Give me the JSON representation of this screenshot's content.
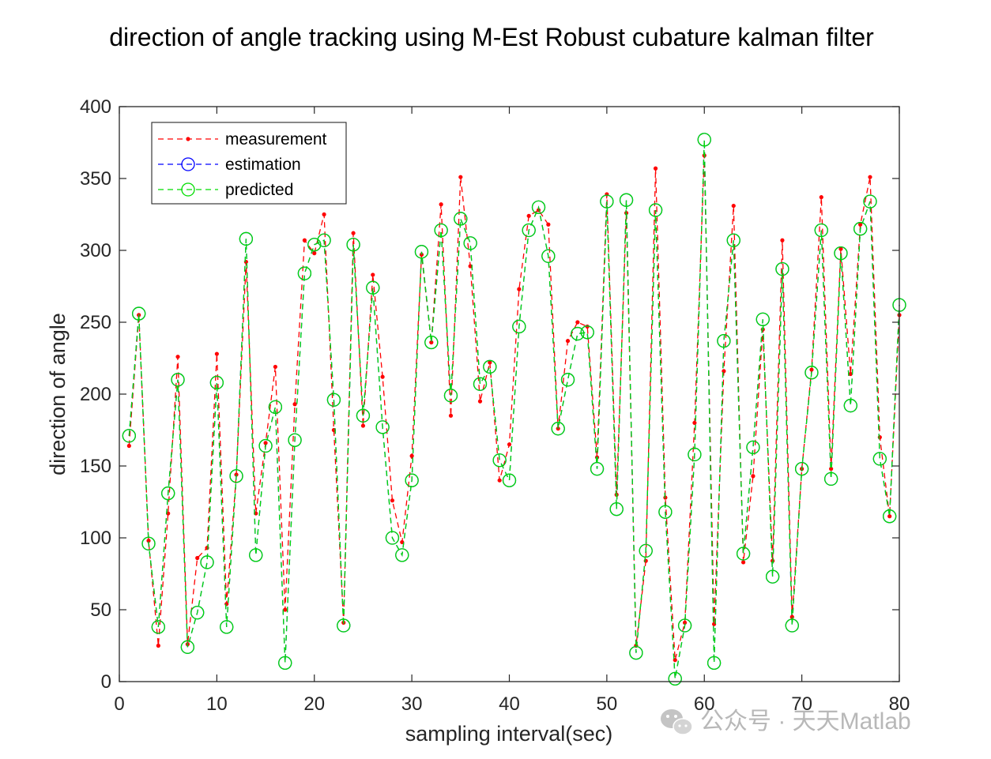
{
  "chart_data": {
    "type": "line",
    "title": "direction of angle tracking using M-Est Robust cubature kalman filter",
    "xlabel": "sampling interval(sec)",
    "ylabel": "direction of angle",
    "xlim": [
      0,
      80
    ],
    "ylim": [
      0,
      400
    ],
    "xticks": [
      "0",
      "10",
      "20",
      "30",
      "40",
      "50",
      "60",
      "70",
      "80"
    ],
    "yticks": [
      "0",
      "50",
      "100",
      "150",
      "200",
      "250",
      "300",
      "350",
      "400"
    ],
    "legend_position": "top-left",
    "grid": false,
    "x": [
      1,
      2,
      3,
      4,
      5,
      6,
      7,
      8,
      9,
      10,
      11,
      12,
      13,
      14,
      15,
      16,
      17,
      18,
      19,
      20,
      21,
      22,
      23,
      24,
      25,
      26,
      27,
      28,
      29,
      30,
      31,
      32,
      33,
      34,
      35,
      36,
      37,
      38,
      39,
      40,
      41,
      42,
      43,
      44,
      45,
      46,
      47,
      48,
      49,
      50,
      51,
      52,
      53,
      54,
      55,
      56,
      57,
      58,
      59,
      60,
      61,
      62,
      63,
      64,
      65,
      66,
      67,
      68,
      69,
      70,
      71,
      72,
      73,
      74,
      75,
      76,
      77,
      78,
      79,
      80
    ],
    "series": [
      {
        "name": "measurement",
        "color": "#ff0000",
        "style": "dashed-dot-marker",
        "values": [
          164,
          255,
          98,
          25,
          117,
          226,
          26,
          86,
          93,
          228,
          54,
          144,
          292,
          117,
          166,
          219,
          50,
          193,
          307,
          298,
          325,
          175,
          41,
          312,
          178,
          283,
          212,
          126,
          97,
          157,
          297,
          236,
          332,
          185,
          351,
          289,
          195,
          222,
          140,
          165,
          273,
          324,
          328,
          318,
          176,
          237,
          250,
          247,
          156,
          339,
          130,
          326,
          25,
          84,
          357,
          128,
          15,
          41,
          180,
          366,
          40,
          216,
          331,
          83,
          143,
          245,
          84,
          307,
          45,
          148,
          217,
          337,
          148,
          301,
          214,
          318,
          351,
          170,
          115,
          255
        ],
        "points_labeled": "none"
      },
      {
        "name": "estimation",
        "color": "#0000ff",
        "style": "dashed-circle",
        "values": [
          171,
          256,
          96,
          38,
          131,
          210,
          24,
          48,
          83,
          208,
          38,
          143,
          308,
          88,
          164,
          191,
          13,
          168,
          284,
          304,
          307,
          196,
          39,
          304,
          185,
          274,
          177,
          100,
          88,
          140,
          299,
          236,
          314,
          199,
          322,
          305,
          207,
          219,
          154,
          140,
          247,
          314,
          330,
          296,
          176,
          210,
          242,
          243,
          148,
          334,
          120,
          335,
          20,
          91,
          328,
          118,
          2,
          39,
          158,
          377,
          13,
          237,
          307,
          89,
          163,
          252,
          73,
          287,
          39,
          148,
          215,
          314,
          141,
          298,
          192,
          315,
          334,
          155,
          115,
          262
        ]
      },
      {
        "name": "predicted",
        "color": "#00dd00",
        "style": "dashed-circle",
        "values": [
          171,
          256,
          96,
          38,
          131,
          210,
          24,
          48,
          83,
          208,
          38,
          143,
          308,
          88,
          164,
          191,
          13,
          168,
          284,
          304,
          307,
          196,
          39,
          304,
          185,
          274,
          177,
          100,
          88,
          140,
          299,
          236,
          314,
          199,
          322,
          305,
          207,
          219,
          154,
          140,
          247,
          314,
          330,
          296,
          176,
          210,
          242,
          243,
          148,
          334,
          120,
          335,
          20,
          91,
          328,
          118,
          2,
          39,
          158,
          377,
          13,
          237,
          307,
          89,
          163,
          252,
          73,
          287,
          39,
          148,
          215,
          314,
          141,
          298,
          192,
          315,
          334,
          155,
          115,
          262
        ]
      }
    ]
  },
  "watermark": {
    "text": "公众号 · 天天Matlab",
    "icon": "wechat-icon"
  }
}
